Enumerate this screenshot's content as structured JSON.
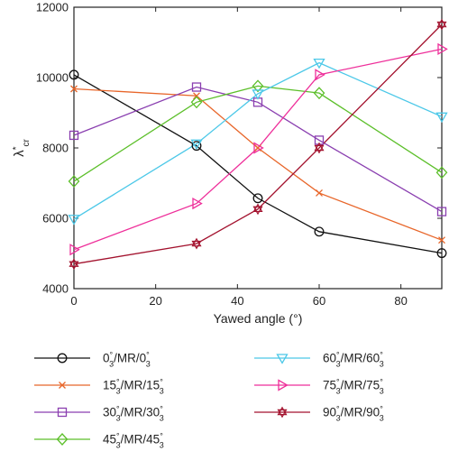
{
  "chart_data": {
    "type": "line",
    "xlabel": "Yawed angle (°)",
    "ylabel": "λ*cr",
    "ylabel_main": "λ",
    "ylabel_sup": "*",
    "ylabel_sub": "cr",
    "xlim": [
      0,
      90
    ],
    "ylim": [
      4000,
      12000
    ],
    "xticks": [
      0,
      20,
      40,
      60,
      80
    ],
    "yticks": [
      4000,
      6000,
      8000,
      10000,
      12000
    ],
    "x": [
      0,
      30,
      45,
      60,
      90
    ],
    "grid": false,
    "legend_position": "bottom",
    "series": [
      {
        "name": "0°3/MR/0°3",
        "angle": "0",
        "color": "#111111",
        "marker": "circle",
        "values": [
          10080,
          8060,
          6570,
          5620,
          5010
        ]
      },
      {
        "name": "15°3/MR/15°3",
        "angle": "15",
        "color": "#e8662a",
        "marker": "x",
        "values": [
          9680,
          9480,
          8000,
          6720,
          5380
        ]
      },
      {
        "name": "30°3/MR/30°3",
        "angle": "30",
        "color": "#8a3fb0",
        "marker": "square",
        "values": [
          8360,
          9730,
          9300,
          8220,
          6190
        ]
      },
      {
        "name": "45°3/MR/45°3",
        "angle": "45",
        "color": "#5cbf2a",
        "marker": "diamond",
        "values": [
          7050,
          9300,
          9760,
          9560,
          7300
        ]
      },
      {
        "name": "60°3/MR/60°3",
        "angle": "60",
        "color": "#4cc8e8",
        "marker": "triangle-down",
        "values": [
          5980,
          8120,
          9540,
          10420,
          8890
        ]
      },
      {
        "name": "75°3/MR/75°3",
        "angle": "75",
        "color": "#ee2f9a",
        "marker": "triangle-right",
        "values": [
          5110,
          6420,
          8000,
          10080,
          10810
        ]
      },
      {
        "name": "90°3/MR/90°3",
        "angle": "90",
        "color": "#a3122e",
        "marker": "hexagram",
        "values": [
          4700,
          5280,
          6260,
          8000,
          11510
        ]
      }
    ]
  }
}
